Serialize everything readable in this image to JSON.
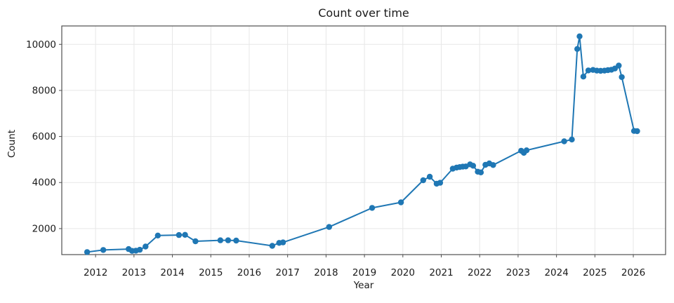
{
  "figure": {
    "title": "Count over time",
    "xlabel": "Year",
    "ylabel": "Count"
  },
  "colors": {
    "line": "#1f77b4",
    "marker": "#1f77b4",
    "grid": "#e7e7e7",
    "axis": "#4f4f4f",
    "text": "#1a1a1a",
    "background": "#ffffff"
  },
  "chart_data": {
    "type": "line",
    "title": "Count over time",
    "xlabel": "Year",
    "ylabel": "Count",
    "grid": true,
    "legend": false,
    "marker": "circle",
    "line_color": "#1f77b4",
    "xlim": [
      2011.12,
      2026.84
    ],
    "ylim": [
      870,
      10800
    ],
    "x_ticks": [
      2012,
      2013,
      2014,
      2015,
      2016,
      2017,
      2018,
      2019,
      2020,
      2021,
      2022,
      2023,
      2024,
      2025,
      2026
    ],
    "y_ticks": [
      2000,
      4000,
      6000,
      8000,
      10000
    ],
    "series": [
      {
        "name": "Count",
        "points": [
          [
            2011.78,
            980
          ],
          [
            2012.2,
            1070
          ],
          [
            2012.86,
            1110
          ],
          [
            2012.95,
            1030
          ],
          [
            2013.05,
            1040
          ],
          [
            2013.15,
            1080
          ],
          [
            2013.3,
            1220
          ],
          [
            2013.62,
            1700
          ],
          [
            2014.17,
            1720
          ],
          [
            2014.33,
            1730
          ],
          [
            2014.6,
            1450
          ],
          [
            2015.25,
            1490
          ],
          [
            2015.45,
            1490
          ],
          [
            2015.66,
            1480
          ],
          [
            2016.6,
            1250
          ],
          [
            2016.78,
            1380
          ],
          [
            2016.88,
            1400
          ],
          [
            2018.08,
            2070
          ],
          [
            2019.2,
            2900
          ],
          [
            2019.95,
            3140
          ],
          [
            2020.53,
            4100
          ],
          [
            2020.7,
            4250
          ],
          [
            2020.88,
            3950
          ],
          [
            2020.97,
            3990
          ],
          [
            2021.3,
            4600
          ],
          [
            2021.4,
            4650
          ],
          [
            2021.48,
            4670
          ],
          [
            2021.56,
            4690
          ],
          [
            2021.64,
            4700
          ],
          [
            2021.75,
            4790
          ],
          [
            2021.83,
            4730
          ],
          [
            2021.95,
            4470
          ],
          [
            2022.03,
            4440
          ],
          [
            2022.15,
            4770
          ],
          [
            2022.25,
            4830
          ],
          [
            2022.35,
            4760
          ],
          [
            2023.08,
            5380
          ],
          [
            2023.15,
            5290
          ],
          [
            2023.22,
            5400
          ],
          [
            2024.2,
            5790
          ],
          [
            2024.4,
            5870
          ],
          [
            2024.54,
            9800
          ],
          [
            2024.6,
            10350
          ],
          [
            2024.7,
            8600
          ],
          [
            2024.83,
            8870
          ],
          [
            2024.95,
            8890
          ],
          [
            2025.05,
            8860
          ],
          [
            2025.15,
            8850
          ],
          [
            2025.25,
            8860
          ],
          [
            2025.34,
            8880
          ],
          [
            2025.43,
            8900
          ],
          [
            2025.52,
            8950
          ],
          [
            2025.62,
            9080
          ],
          [
            2025.7,
            8580
          ],
          [
            2026.02,
            6240
          ],
          [
            2026.1,
            6230
          ]
        ]
      }
    ]
  }
}
